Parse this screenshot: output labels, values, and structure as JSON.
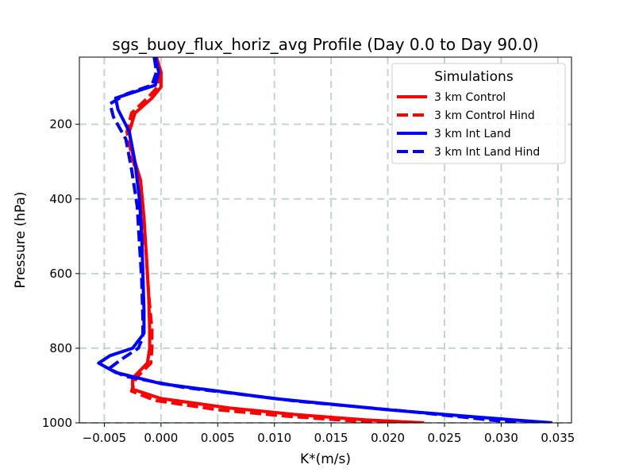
{
  "chart_data": {
    "type": "line",
    "title": "sgs_buoy_flux_horiz_avg Profile (Day 0.0 to Day 90.0)",
    "xlabel": "K*(m/s)",
    "ylabel": "Pressure (hPa)",
    "xlim": [
      -0.0072,
      0.0362
    ],
    "ylim": [
      1000,
      20
    ],
    "y_inverted": true,
    "grid": true,
    "x_ticks": [
      -0.005,
      0.0,
      0.005,
      0.01,
      0.015,
      0.02,
      0.025,
      0.03,
      0.035
    ],
    "x_tick_labels": [
      "−0.005",
      "0.000",
      "0.005",
      "0.010",
      "0.015",
      "0.020",
      "0.025",
      "0.030",
      "0.035"
    ],
    "y_ticks": [
      200,
      400,
      600,
      800,
      1000
    ],
    "y_tick_labels": [
      "200",
      "400",
      "600",
      "800",
      "1000"
    ],
    "legend": {
      "title": "Simulations",
      "position": "upper right",
      "entries": [
        "3 km Control",
        "3 km Control Hind",
        "3 km Int Land",
        "3 km Int Land Hind"
      ]
    },
    "series": [
      {
        "name": "3 km Control",
        "color": "#ff0000",
        "style": "solid",
        "points": [
          [
            -0.0004,
            20
          ],
          [
            0.0,
            60
          ],
          [
            0.0,
            100
          ],
          [
            -0.0008,
            130
          ],
          [
            -0.0023,
            170
          ],
          [
            -0.0028,
            220
          ],
          [
            -0.0025,
            280
          ],
          [
            -0.0018,
            350
          ],
          [
            -0.0015,
            450
          ],
          [
            -0.0013,
            550
          ],
          [
            -0.0011,
            650
          ],
          [
            -0.001,
            750
          ],
          [
            -0.001,
            800
          ],
          [
            -0.0012,
            840
          ],
          [
            -0.0025,
            880
          ],
          [
            -0.0025,
            910
          ],
          [
            0.0,
            935
          ],
          [
            0.006,
            960
          ],
          [
            0.012,
            978
          ],
          [
            0.018,
            992
          ],
          [
            0.0232,
            1000
          ]
        ]
      },
      {
        "name": "3 km Control Hind",
        "color": "#ff0000",
        "style": "dashed",
        "points": [
          [
            -0.0006,
            20
          ],
          [
            -0.0002,
            60
          ],
          [
            -0.0003,
            100
          ],
          [
            -0.0012,
            130
          ],
          [
            -0.0026,
            170
          ],
          [
            -0.003,
            220
          ],
          [
            -0.0026,
            280
          ],
          [
            -0.002,
            350
          ],
          [
            -0.0016,
            450
          ],
          [
            -0.0013,
            550
          ],
          [
            -0.0011,
            650
          ],
          [
            -0.0008,
            750
          ],
          [
            -0.0008,
            800
          ],
          [
            -0.0009,
            840
          ],
          [
            -0.0022,
            880
          ],
          [
            -0.0026,
            915
          ],
          [
            -0.0005,
            940
          ],
          [
            0.005,
            965
          ],
          [
            0.011,
            982
          ],
          [
            0.017,
            995
          ],
          [
            0.0195,
            1000
          ]
        ]
      },
      {
        "name": "3 km Int Land",
        "color": "#0000ff",
        "style": "solid",
        "points": [
          [
            -0.0005,
            20
          ],
          [
            -0.0002,
            60
          ],
          [
            -0.0005,
            95
          ],
          [
            -0.0025,
            115
          ],
          [
            -0.004,
            130
          ],
          [
            -0.0038,
            160
          ],
          [
            -0.0028,
            220
          ],
          [
            -0.0023,
            300
          ],
          [
            -0.0019,
            400
          ],
          [
            -0.0017,
            500
          ],
          [
            -0.0016,
            600
          ],
          [
            -0.0015,
            700
          ],
          [
            -0.0015,
            760
          ],
          [
            -0.0025,
            800
          ],
          [
            -0.0045,
            820
          ],
          [
            -0.0055,
            840
          ],
          [
            -0.004,
            865
          ],
          [
            0.0,
            895
          ],
          [
            0.01,
            935
          ],
          [
            0.02,
            965
          ],
          [
            0.028,
            985
          ],
          [
            0.0345,
            1000
          ]
        ]
      },
      {
        "name": "3 km Int Land Hind",
        "color": "#0000ff",
        "style": "dashed",
        "points": [
          [
            -0.0006,
            20
          ],
          [
            -0.0004,
            60
          ],
          [
            -0.0008,
            95
          ],
          [
            -0.003,
            118
          ],
          [
            -0.0045,
            145
          ],
          [
            -0.0042,
            180
          ],
          [
            -0.0031,
            240
          ],
          [
            -0.0026,
            320
          ],
          [
            -0.0021,
            420
          ],
          [
            -0.0019,
            520
          ],
          [
            -0.0017,
            620
          ],
          [
            -0.0016,
            720
          ],
          [
            -0.0016,
            770
          ],
          [
            -0.002,
            800
          ],
          [
            -0.0035,
            830
          ],
          [
            -0.0046,
            855
          ],
          [
            -0.0032,
            875
          ],
          [
            0.002,
            905
          ],
          [
            0.012,
            942
          ],
          [
            0.022,
            970
          ],
          [
            0.0315,
            1000
          ]
        ]
      }
    ]
  }
}
